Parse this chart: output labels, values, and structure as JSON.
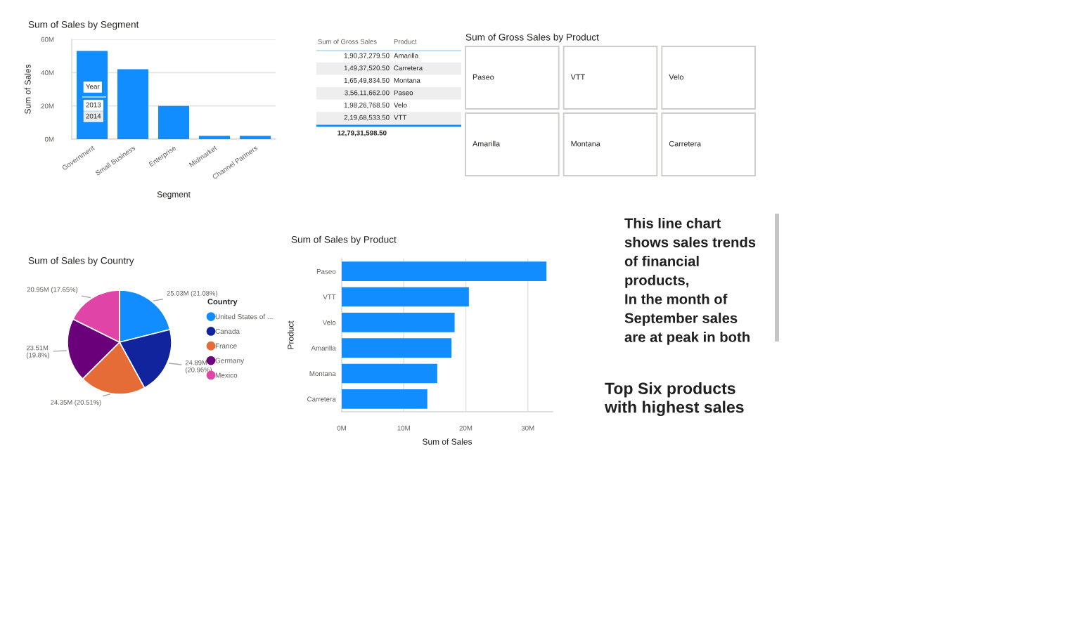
{
  "chart_data": [
    {
      "type": "bar",
      "title": "Sum of Sales by Segment",
      "xlabel": "Segment",
      "ylabel": "Sum of Sales",
      "categories": [
        "Government",
        "Small Business",
        "Enterprise",
        "Midmarket",
        "Channel Partners"
      ],
      "values": [
        53,
        42,
        20,
        2,
        2
      ],
      "color": "#118dff",
      "ylim": [
        0,
        60
      ],
      "yticks": [
        {
          "value": 0,
          "label": "0M"
        },
        {
          "value": 20,
          "label": "20M"
        },
        {
          "value": 40,
          "label": "40M"
        },
        {
          "value": 60,
          "label": "60M"
        }
      ],
      "grid": "y"
    },
    {
      "type": "other",
      "annotations": [
        "Year",
        "2013",
        "2014"
      ]
    },
    {
      "type": "other",
      "annotations": [
        "Sum of Gross Sales",
        "Product",
        "1,90,37,279.50",
        "Amarilla",
        "1,49,37,520.50",
        "Carretera",
        "1,65,49,834.50",
        "Montana",
        "3,56,11,662.00",
        "Paseo",
        "1,98,26,768.50",
        "Velo",
        "2,19,68,533.50",
        "VTT",
        "12,79,31,598.50"
      ]
    },
    {
      "type": "other",
      "title": "Sum of Gross Sales by Product",
      "annotations": [
        "Paseo",
        "VTT",
        "Velo",
        "Amarilla",
        "Montana",
        "Carretera"
      ]
    },
    {
      "type": "pie",
      "title": "Sum of Sales by Country",
      "legend_title": "Country",
      "categories": [
        "United States of ...",
        "Canada",
        "France",
        "Germany",
        "Mexico"
      ],
      "values": [
        21.08,
        20.96,
        20.51,
        19.8,
        17.65
      ],
      "value_labels": [
        "25.03M (21.08%)",
        "24.89M\n(20.96%)",
        "24.35M (20.51%)",
        "23.51M\n(19.8%)",
        "20.95M (17.65%)"
      ],
      "colors": [
        "#118dff",
        "#12239e",
        "#e66c37",
        "#6b007b",
        "#e044a7"
      ],
      "legend": "right"
    },
    {
      "type": "bar",
      "orientation": "horizontal",
      "title": "Sum of Sales by Product",
      "xlabel": "Sum of Sales",
      "ylabel": "Product",
      "categories": [
        "Paseo",
        "VTT",
        "Velo",
        "Amarilla",
        "Montana",
        "Carretera"
      ],
      "values": [
        33.0,
        20.5,
        18.2,
        17.7,
        15.4,
        13.8
      ],
      "color": "#118dff",
      "xlim": [
        0,
        34
      ],
      "xticks": [
        {
          "value": 0,
          "label": "0M"
        },
        {
          "value": 10,
          "label": "10M"
        },
        {
          "value": 20,
          "label": "20M"
        },
        {
          "value": 30,
          "label": "30M"
        }
      ],
      "grid": "x"
    },
    {
      "type": "other",
      "annotations": [
        "This line chart\nshows sales trends\nof financial\nproducts,\nIn the month of\nSeptember sales\nare at peak in both",
        "Top Six products\nwith highest sales"
      ]
    }
  ]
}
